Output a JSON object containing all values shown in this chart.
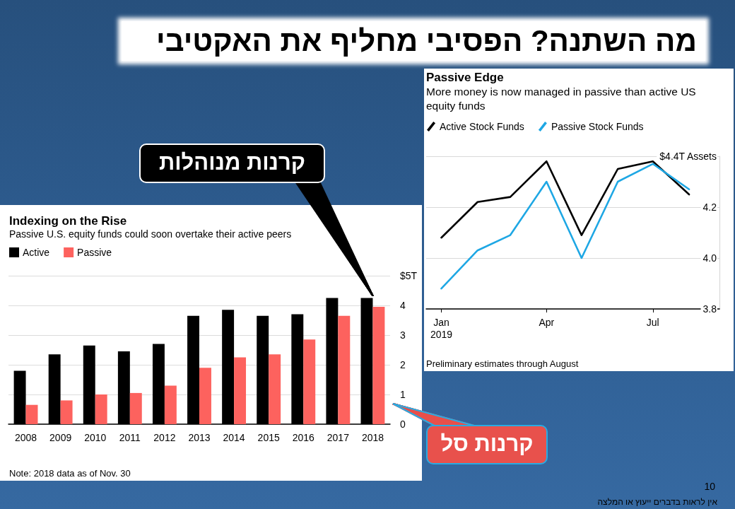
{
  "chart_data": [
    {
      "type": "other",
      "title": "מה השתנה? הפסיבי מחליף את האקטיבי",
      "annotations": [
        "10",
        "אין לראות בדברים ייעוץ או המלצה"
      ]
    },
    {
      "type": "bar",
      "title": "Indexing on the Rise",
      "subtitle": "Passive U.S. equity funds could soon overtake their active peers",
      "categories": [
        "2008",
        "2009",
        "2010",
        "2011",
        "2012",
        "2013",
        "2014",
        "2015",
        "2016",
        "2017",
        "2018"
      ],
      "series": [
        {
          "name": "Active",
          "color": "#000000",
          "values": [
            1.8,
            2.35,
            2.65,
            2.45,
            2.7,
            3.65,
            3.85,
            3.65,
            3.7,
            4.25,
            4.25
          ]
        },
        {
          "name": "Passive",
          "color": "#fd625e",
          "values": [
            0.65,
            0.8,
            1.0,
            1.05,
            1.3,
            1.9,
            2.25,
            2.35,
            2.85,
            3.65,
            3.95
          ]
        }
      ],
      "ylim": [
        0,
        5
      ],
      "yticks": [
        0,
        1,
        2,
        3,
        4,
        {
          "value": 5,
          "label": "$5T"
        }
      ],
      "grid": "y",
      "legend": "top left",
      "annotations": [
        {
          "text": "קרנות מנוהלות",
          "x": "2018",
          "y": 4.25
        },
        "קרנות סל",
        "Note: 2018 data as of Nov. 30"
      ]
    },
    {
      "type": "line",
      "title": "Passive Edge",
      "subtitle": "More money is now managed in passive than active US equity funds",
      "x": [
        "2019-01",
        "2019-02",
        "2019-03",
        "2019-04",
        "2019-05",
        "2019-06",
        "2019-07",
        "2019-08"
      ],
      "series": [
        {
          "name": "Active Stock Funds",
          "color": "#000000",
          "values": [
            4.08,
            4.22,
            4.24,
            4.38,
            4.09,
            4.35,
            4.38,
            4.25
          ]
        },
        {
          "name": "Passive Stock Funds",
          "color": "#1ea7e4",
          "values": [
            3.88,
            4.03,
            4.09,
            4.3,
            4.0,
            4.3,
            4.37,
            4.27
          ]
        }
      ],
      "xlim": [
        "2018-12-19",
        "2019-08-27"
      ],
      "xticks": [
        {
          "value": "2019-01",
          "label": "Jan\n2019"
        },
        {
          "value": "2019-04",
          "label": "Apr"
        },
        {
          "value": "2019-07",
          "label": "Jul"
        }
      ],
      "ylim": [
        3.8,
        4.4
      ],
      "yticks": [
        3.8,
        {
          "value": 4,
          "label": "4.0"
        },
        4.2,
        {
          "value": 4.4,
          "label": "$4.4T Assets"
        }
      ],
      "grid": "y",
      "legend": "top left",
      "marker": "none",
      "line_style": "solid",
      "annotations": [
        "Preliminary estimates through August"
      ]
    }
  ]
}
